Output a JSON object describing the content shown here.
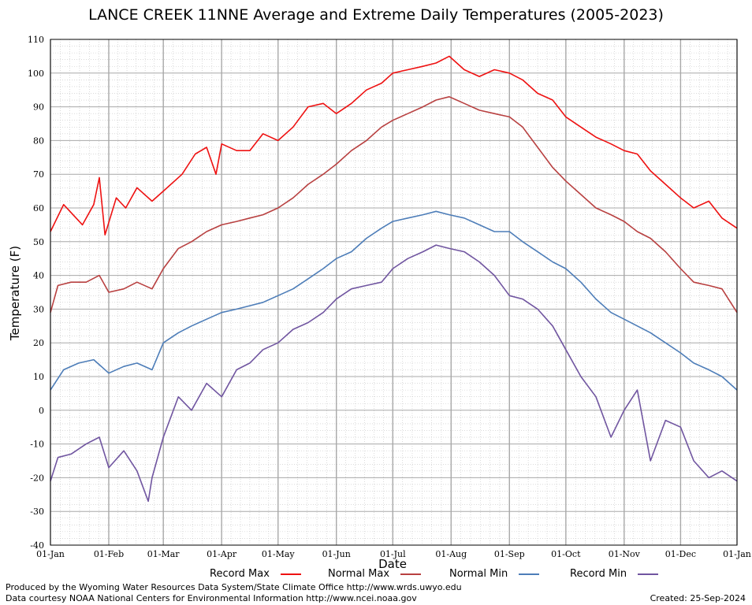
{
  "chart_data": {
    "type": "line",
    "title": "LANCE CREEK 11NNE Average and Extreme Daily Temperatures (2005-2023)",
    "xlabel": "Date",
    "ylabel": "Temperature (F)",
    "ylim": [
      -40,
      110
    ],
    "yticks": [
      -40,
      -30,
      -20,
      -10,
      0,
      10,
      20,
      30,
      40,
      50,
      60,
      70,
      80,
      90,
      100,
      110
    ],
    "x_unit": "day of year",
    "xlim": [
      1,
      366
    ],
    "x_ticks": [
      {
        "day": 1,
        "label": "01-Jan"
      },
      {
        "day": 32,
        "label": "01-Feb"
      },
      {
        "day": 61,
        "label": "01-Mar"
      },
      {
        "day": 92,
        "label": "01-Apr"
      },
      {
        "day": 122,
        "label": "01-May"
      },
      {
        "day": 153,
        "label": "01-Jun"
      },
      {
        "day": 183,
        "label": "01-Jul"
      },
      {
        "day": 214,
        "label": "01-Aug"
      },
      {
        "day": 245,
        "label": "01-Sep"
      },
      {
        "day": 275,
        "label": "01-Oct"
      },
      {
        "day": 306,
        "label": "01-Nov"
      },
      {
        "day": 336,
        "label": "01-Dec"
      },
      {
        "day": 366,
        "label": "01-Jan"
      }
    ],
    "grid": true,
    "legend_position": "bottom",
    "series": [
      {
        "name": "Record Max",
        "color": "#ee1111",
        "x": [
          1,
          8,
          18,
          24,
          27,
          30,
          36,
          41,
          47,
          55,
          61,
          71,
          78,
          84,
          89,
          92,
          100,
          107,
          114,
          122,
          130,
          138,
          146,
          153,
          161,
          169,
          177,
          183,
          191,
          199,
          206,
          213,
          221,
          229,
          237,
          245,
          252,
          260,
          268,
          275,
          283,
          291,
          299,
          306,
          313,
          320,
          328,
          336,
          343,
          351,
          358,
          366
        ],
        "y": [
          53,
          61,
          55,
          61,
          69,
          52,
          63,
          60,
          66,
          62,
          65,
          70,
          76,
          78,
          70,
          79,
          77,
          77,
          82,
          80,
          84,
          90,
          91,
          88,
          91,
          95,
          97,
          100,
          101,
          102,
          103,
          105,
          101,
          99,
          101,
          100,
          98,
          94,
          92,
          87,
          84,
          81,
          79,
          77,
          76,
          71,
          67,
          63,
          60,
          62,
          57,
          54
        ]
      },
      {
        "name": "Normal Max",
        "color": "#b84040",
        "x": [
          1,
          5,
          12,
          20,
          27,
          32,
          40,
          47,
          55,
          61,
          69,
          76,
          84,
          92,
          100,
          107,
          114,
          122,
          130,
          138,
          146,
          153,
          161,
          169,
          177,
          183,
          191,
          199,
          206,
          213,
          221,
          229,
          237,
          245,
          252,
          260,
          268,
          275,
          283,
          291,
          299,
          306,
          313,
          320,
          328,
          336,
          343,
          351,
          358,
          366
        ],
        "y": [
          29,
          37,
          38,
          38,
          40,
          35,
          36,
          38,
          36,
          42,
          48,
          50,
          53,
          55,
          56,
          57,
          58,
          60,
          63,
          67,
          70,
          73,
          77,
          80,
          84,
          86,
          88,
          90,
          92,
          93,
          91,
          89,
          88,
          87,
          84,
          78,
          72,
          68,
          64,
          60,
          58,
          56,
          53,
          51,
          47,
          42,
          38,
          37,
          36,
          29
        ]
      },
      {
        "name": "Normal Min",
        "color": "#4d7db8",
        "x": [
          1,
          8,
          16,
          24,
          32,
          40,
          47,
          55,
          61,
          69,
          76,
          84,
          92,
          100,
          107,
          114,
          122,
          130,
          138,
          146,
          153,
          161,
          169,
          177,
          183,
          191,
          199,
          206,
          213,
          221,
          229,
          237,
          245,
          252,
          260,
          268,
          275,
          283,
          291,
          299,
          306,
          313,
          320,
          328,
          336,
          343,
          351,
          358,
          366
        ],
        "y": [
          6,
          12,
          14,
          15,
          11,
          13,
          14,
          12,
          20,
          23,
          25,
          27,
          29,
          30,
          31,
          32,
          34,
          36,
          39,
          42,
          45,
          47,
          51,
          54,
          56,
          57,
          58,
          59,
          58,
          57,
          55,
          53,
          53,
          50,
          47,
          44,
          42,
          38,
          33,
          29,
          27,
          25,
          23,
          20,
          17,
          14,
          12,
          10,
          6
        ]
      },
      {
        "name": "Record Min",
        "color": "#7055a0",
        "x": [
          1,
          5,
          12,
          20,
          27,
          32,
          40,
          47,
          53,
          55,
          61,
          69,
          76,
          84,
          92,
          100,
          107,
          114,
          122,
          130,
          138,
          146,
          153,
          161,
          169,
          177,
          183,
          191,
          199,
          206,
          213,
          221,
          229,
          237,
          245,
          252,
          260,
          268,
          275,
          283,
          291,
          299,
          306,
          313,
          320,
          328,
          336,
          343,
          351,
          358,
          366
        ],
        "y": [
          -21,
          -14,
          -13,
          -10,
          -8,
          -17,
          -12,
          -18,
          -27,
          -20,
          -8,
          4,
          0,
          8,
          4,
          12,
          14,
          18,
          20,
          24,
          26,
          29,
          33,
          36,
          37,
          38,
          42,
          45,
          47,
          49,
          48,
          47,
          44,
          40,
          34,
          33,
          30,
          25,
          18,
          10,
          4,
          -8,
          0,
          6,
          -15,
          -3,
          -5,
          -15,
          -20,
          -18,
          -21
        ]
      }
    ]
  },
  "legend": [
    {
      "label": "Record Max",
      "color": "#ee1111"
    },
    {
      "label": "Normal Max",
      "color": "#b84040"
    },
    {
      "label": "Normal Min",
      "color": "#4d7db8"
    },
    {
      "label": "Record Min",
      "color": "#7055a0"
    }
  ],
  "footer": {
    "produced_by": "Produced by the Wyoming Water Resources Data System/State Climate Office http://www.wrds.uwyo.edu",
    "courtesy": "Data courtesy NOAA National Centers for Environmental Information http://www.ncei.noaa.gov",
    "created": "Created:  25-Sep-2024"
  }
}
